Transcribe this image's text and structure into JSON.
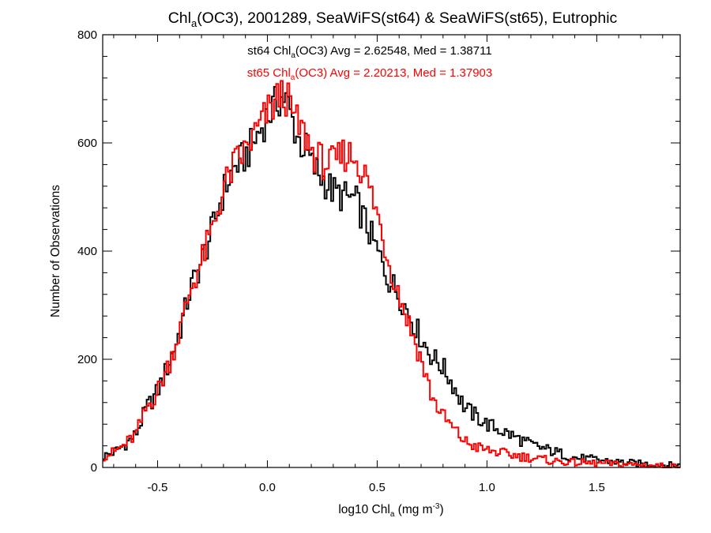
{
  "chart_data": {
    "type": "histogram-step",
    "title": {
      "prefix": "Chl",
      "sub": "a",
      "suffix": "(OC3), 2001289, SeaWiFS(st64) & SeaWiFS(st65), Eutrophic"
    },
    "xlabel": {
      "prefix": "log10 Chl",
      "sub": "a",
      "mid": " (mg m",
      "sup": "-3",
      "suffix": ")"
    },
    "ylabel": "Number of Observations",
    "xlim": [
      -0.75,
      1.88
    ],
    "ylim": [
      0,
      800
    ],
    "x_ticks": [
      -0.5,
      0.0,
      0.5,
      1.0,
      1.5
    ],
    "x_tick_labels": [
      "-0.5",
      "0.0",
      "0.5",
      "1.0",
      "1.5"
    ],
    "x_minor_step": 0.1,
    "y_ticks": [
      0,
      200,
      400,
      600,
      800
    ],
    "y_tick_labels": [
      "0",
      "200",
      "400",
      "600",
      "800"
    ],
    "y_minor_step": 40,
    "bin_width": 0.01,
    "series": [
      {
        "name": "st64",
        "color": "#000000",
        "stats": {
          "prefix": "st64 Chl",
          "sub": "a",
          "suffix": "(OC3) Avg = 2.62548, Med = 1.38711"
        },
        "points": [
          [
            -0.75,
            20
          ],
          [
            -0.7,
            28
          ],
          [
            -0.65,
            42
          ],
          [
            -0.6,
            60
          ],
          [
            -0.55,
            110
          ],
          [
            -0.5,
            140
          ],
          [
            -0.45,
            190
          ],
          [
            -0.4,
            250
          ],
          [
            -0.35,
            330
          ],
          [
            -0.3,
            380
          ],
          [
            -0.25,
            440
          ],
          [
            -0.2,
            510
          ],
          [
            -0.15,
            555
          ],
          [
            -0.1,
            575
          ],
          [
            -0.05,
            610
          ],
          [
            0.0,
            650
          ],
          [
            0.03,
            665
          ],
          [
            0.05,
            680
          ],
          [
            0.08,
            685
          ],
          [
            0.1,
            660
          ],
          [
            0.13,
            620
          ],
          [
            0.15,
            600
          ],
          [
            0.18,
            585
          ],
          [
            0.2,
            560
          ],
          [
            0.25,
            535
          ],
          [
            0.3,
            510
          ],
          [
            0.35,
            500
          ],
          [
            0.4,
            495
          ],
          [
            0.45,
            450
          ],
          [
            0.5,
            400
          ],
          [
            0.55,
            350
          ],
          [
            0.6,
            320
          ],
          [
            0.65,
            280
          ],
          [
            0.7,
            240
          ],
          [
            0.75,
            205
          ],
          [
            0.8,
            185
          ],
          [
            0.85,
            150
          ],
          [
            0.9,
            110
          ],
          [
            0.95,
            95
          ],
          [
            1.0,
            80
          ],
          [
            1.1,
            62
          ],
          [
            1.2,
            42
          ],
          [
            1.3,
            30
          ],
          [
            1.4,
            18
          ],
          [
            1.5,
            14
          ],
          [
            1.6,
            10
          ],
          [
            1.7,
            7
          ],
          [
            1.8,
            5
          ],
          [
            1.88,
            4
          ]
        ]
      },
      {
        "name": "st65",
        "color": "#ff0000",
        "stats": {
          "prefix": "st65 Chl",
          "sub": "a",
          "suffix": "(OC3) Avg = 2.20213, Med = 1.37903"
        },
        "points": [
          [
            -0.75,
            20
          ],
          [
            -0.7,
            28
          ],
          [
            -0.65,
            42
          ],
          [
            -0.6,
            60
          ],
          [
            -0.55,
            110
          ],
          [
            -0.5,
            140
          ],
          [
            -0.45,
            190
          ],
          [
            -0.4,
            250
          ],
          [
            -0.35,
            330
          ],
          [
            -0.3,
            380
          ],
          [
            -0.25,
            440
          ],
          [
            -0.2,
            515
          ],
          [
            -0.15,
            560
          ],
          [
            -0.1,
            585
          ],
          [
            -0.05,
            620
          ],
          [
            0.0,
            655
          ],
          [
            0.03,
            670
          ],
          [
            0.05,
            685
          ],
          [
            0.08,
            690
          ],
          [
            0.1,
            670
          ],
          [
            0.13,
            640
          ],
          [
            0.15,
            625
          ],
          [
            0.18,
            610
          ],
          [
            0.2,
            585
          ],
          [
            0.25,
            565
          ],
          [
            0.3,
            560
          ],
          [
            0.35,
            580
          ],
          [
            0.4,
            575
          ],
          [
            0.45,
            535
          ],
          [
            0.5,
            470
          ],
          [
            0.55,
            385
          ],
          [
            0.6,
            320
          ],
          [
            0.65,
            260
          ],
          [
            0.7,
            200
          ],
          [
            0.75,
            130
          ],
          [
            0.8,
            95
          ],
          [
            0.85,
            70
          ],
          [
            0.9,
            48
          ],
          [
            0.95,
            38
          ],
          [
            1.0,
            32
          ],
          [
            1.1,
            24
          ],
          [
            1.2,
            18
          ],
          [
            1.3,
            12
          ],
          [
            1.4,
            9
          ],
          [
            1.5,
            8
          ],
          [
            1.6,
            6
          ],
          [
            1.7,
            5
          ],
          [
            1.8,
            3
          ],
          [
            1.88,
            2
          ]
        ]
      }
    ]
  }
}
